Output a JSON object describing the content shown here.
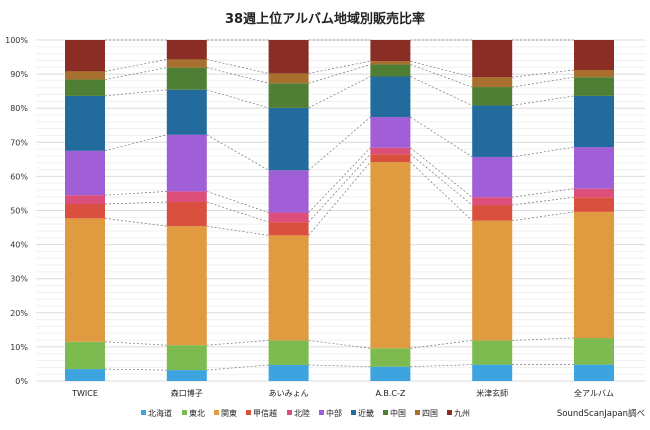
{
  "chart_data": {
    "type": "bar",
    "stacked": "percent",
    "title": "38週上位アルバム地域別販売比率",
    "categories": [
      "TWICE",
      "森口博子",
      "あいみょん",
      "A.B.C-Z",
      "米津玄師",
      "全アルバム"
    ],
    "series": [
      {
        "name": "北海道",
        "color": "#3ea4e0",
        "values": [
          3.5,
          3.2,
          4.7,
          4.2,
          4.8,
          4.8
        ]
      },
      {
        "name": "東北",
        "color": "#7dbb50",
        "values": [
          8.0,
          7.3,
          7.2,
          5.4,
          7.1,
          7.8
        ]
      },
      {
        "name": "関東",
        "color": "#e09a40",
        "values": [
          36.2,
          34.9,
          30.8,
          54.6,
          35.1,
          37.0
        ]
      },
      {
        "name": "甲信越",
        "color": "#d9503f",
        "values": [
          4.2,
          7.1,
          3.9,
          2.3,
          4.6,
          4.3
        ]
      },
      {
        "name": "北陸",
        "color": "#dd4f7b",
        "values": [
          2.6,
          3.1,
          2.8,
          1.9,
          2.3,
          2.5
        ]
      },
      {
        "name": "中部",
        "color": "#a05fd6",
        "values": [
          13.0,
          16.6,
          12.4,
          9.0,
          11.8,
          12.2
        ]
      },
      {
        "name": "近畿",
        "color": "#236b9c",
        "values": [
          16.1,
          13.2,
          18.3,
          11.9,
          15.1,
          15.0
        ]
      },
      {
        "name": "中国",
        "color": "#4f7f35",
        "values": [
          4.8,
          6.5,
          7.2,
          3.5,
          5.4,
          5.5
        ]
      },
      {
        "name": "四国",
        "color": "#a8702e",
        "values": [
          2.4,
          2.4,
          2.9,
          1.0,
          2.9,
          2.1
        ]
      },
      {
        "name": "九州",
        "color": "#8a2e25",
        "values": [
          9.2,
          5.7,
          9.8,
          6.2,
          10.9,
          8.8
        ]
      }
    ],
    "ylim": [
      0,
      100
    ],
    "yticks": [
      "0%",
      "10%",
      "20%",
      "30%",
      "40%",
      "50%",
      "60%",
      "70%",
      "80%",
      "90%",
      "100%"
    ],
    "grid": true,
    "series_lines": "dashed",
    "legend": "bottom",
    "source": "SoundScanJapan調べ"
  }
}
